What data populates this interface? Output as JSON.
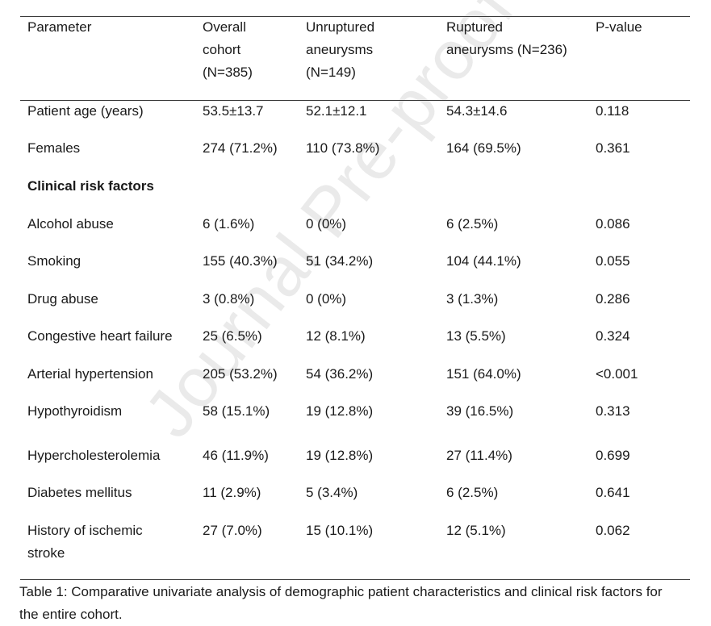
{
  "table": {
    "headers": [
      "Parameter",
      "Overall\ncohort\n(N=385)",
      "Unruptured\naneurysms\n(N=149)",
      "Ruptured\naneurysms (N=236)",
      "P-value"
    ],
    "rows": [
      {
        "label": "Patient age (years)",
        "overall": "53.5±13.7",
        "unruptured": "52.1±12.1",
        "ruptured": "54.3±14.6",
        "p": "0.118"
      },
      {
        "label": "Females",
        "overall": "274 (71.2%)",
        "unruptured": "110 (73.8%)",
        "ruptured": "164 (69.5%)",
        "p": "0.361"
      },
      {
        "section": "Clinical risk factors"
      },
      {
        "label": "Alcohol abuse",
        "overall": "6 (1.6%)",
        "unruptured": "0 (0%)",
        "ruptured": "6 (2.5%)",
        "p": "0.086"
      },
      {
        "label": "Smoking",
        "overall": "155 (40.3%)",
        "unruptured": "51 (34.2%)",
        "ruptured": "104 (44.1%)",
        "p": "0.055"
      },
      {
        "label": "Drug abuse",
        "overall": "3 (0.8%)",
        "unruptured": "0 (0%)",
        "ruptured": "3 (1.3%)",
        "p": "0.286"
      },
      {
        "label": "Congestive heart failure",
        "overall": "25 (6.5%)",
        "unruptured": "12 (8.1%)",
        "ruptured": "13 (5.5%)",
        "p": "0.324"
      },
      {
        "label": "Arterial hypertension",
        "overall": "205 (53.2%)",
        "unruptured": "54 (36.2%)",
        "ruptured": "151 (64.0%)",
        "p": "<0.001"
      },
      {
        "label": "Hypothyroidism",
        "overall": "58 (15.1%)",
        "unruptured": "19 (12.8%)",
        "ruptured": "39 (16.5%)",
        "p": "0.313"
      },
      {
        "label": "Hypercholesterolemia",
        "overall": "46 (11.9%)",
        "unruptured": "19 (12.8%)",
        "ruptured": "27 (11.4%)",
        "p": "0.699"
      },
      {
        "label": "Diabetes mellitus",
        "overall": "11 (2.9%)",
        "unruptured": "5 (3.4%)",
        "ruptured": "6 (2.5%)",
        "p": "0.641"
      },
      {
        "label": "History of ischemic\nstroke",
        "overall": "27 (7.0%)",
        "unruptured": "15 (10.1%)",
        "ruptured": "12 (5.1%)",
        "p": "0.062"
      }
    ]
  },
  "caption": "Table 1: Comparative univariate analysis of demographic patient characteristics and clinical risk factors for the entire cohort.",
  "watermark": "Journal Pre-proof"
}
